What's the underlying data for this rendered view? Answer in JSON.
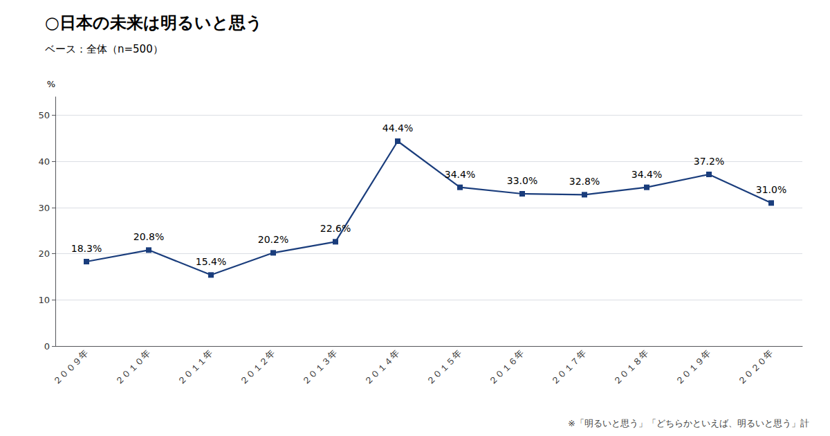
{
  "chart_data": {
    "type": "line",
    "title": "○日本の未来は明るいと思う",
    "subtitle": "ベース：全体（n=500）",
    "ylabel": "%",
    "annotations": [
      "※「明るいと思う」「どちらかといえば、明るいと思う」計"
    ],
    "categories": [
      "２００９年",
      "２０１０年",
      "２０１１年",
      "２０１２年",
      "２０１３年",
      "２０１４年",
      "２０１５年",
      "２０１６年",
      "２０１７年",
      "２０１８年",
      "２０１９年",
      "２０２０年"
    ],
    "values": [
      18.3,
      20.8,
      15.4,
      20.2,
      22.6,
      44.4,
      34.4,
      33.0,
      32.8,
      34.4,
      37.2,
      31.0
    ],
    "value_labels": [
      "18.3%",
      "20.8%",
      "15.4%",
      "20.2%",
      "22.6%",
      "44.4%",
      "34.4%",
      "33.0%",
      "32.8%",
      "34.4%",
      "37.2%",
      "31.0%"
    ],
    "data_labels": true,
    "color": "#1a3d7c",
    "marker": "square",
    "ylim": [
      0,
      54
    ],
    "yticks": [
      0,
      10,
      20,
      30,
      40,
      50
    ],
    "grid": true
  }
}
